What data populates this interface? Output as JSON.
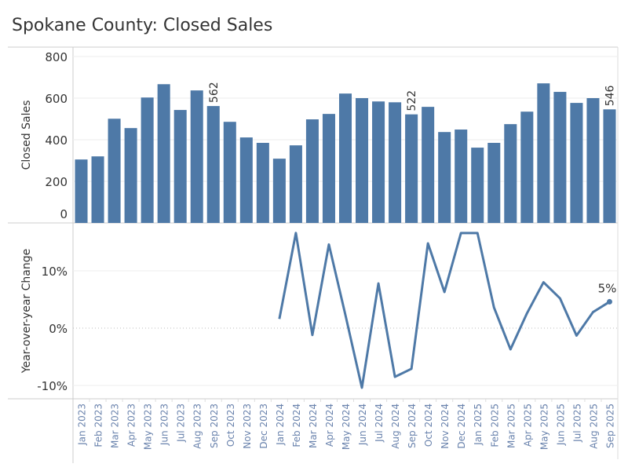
{
  "title": "Spokane County: Closed Sales",
  "chart_data": [
    {
      "type": "bar",
      "ylabel": "Closed Sales",
      "ylim": [
        0,
        800
      ],
      "yticks": [
        0,
        200,
        400,
        600,
        800
      ],
      "grid": true,
      "color": "#4e79a7",
      "categories": [
        "Jan 2023",
        "Feb 2023",
        "Mar 2023",
        "Apr 2023",
        "May 2023",
        "Jun 2023",
        "Jul 2023",
        "Aug 2023",
        "Sep 2023",
        "Oct 2023",
        "Nov 2023",
        "Dec 2023",
        "Jan 2024",
        "Feb 2024",
        "Mar 2024",
        "Apr 2024",
        "May 2024",
        "Jun 2024",
        "Jul 2024",
        "Aug 2024",
        "Sep 2024",
        "Oct 2024",
        "Nov 2024",
        "Dec 2024",
        "Jan 2025",
        "Feb 2025",
        "Mar 2025",
        "Apr 2025",
        "May 2025",
        "Jun 2025",
        "Jul 2025",
        "Aug 2025",
        "Sep 2025"
      ],
      "values": [
        305,
        320,
        501,
        456,
        603,
        667,
        543,
        637,
        562,
        486,
        411,
        385,
        309,
        373,
        498,
        524,
        622,
        600,
        584,
        580,
        522,
        558,
        437,
        449,
        362,
        385,
        475,
        535,
        671,
        630,
        577,
        600,
        546
      ],
      "data_labels": {
        "Sep 2023": "562",
        "Sep 2024": "522",
        "Sep 2025": "546"
      }
    },
    {
      "type": "line",
      "ylabel": "Year-over-year Change",
      "ylim": [
        -12.5,
        18.3
      ],
      "yticks": [
        -10,
        0,
        10
      ],
      "ytick_labels": [
        "-10%",
        "0%",
        "10%"
      ],
      "zero_line": "dotted",
      "color": "#4e79a7",
      "categories": [
        "Jan 2024",
        "Feb 2024",
        "Mar 2024",
        "Apr 2024",
        "May 2024",
        "Jun 2024",
        "Jul 2024",
        "Aug 2024",
        "Sep 2024",
        "Oct 2024",
        "Nov 2024",
        "Dec 2024",
        "Jan 2025",
        "Feb 2025",
        "Mar 2025",
        "Apr 2025",
        "May 2025",
        "Jun 2025",
        "Jul 2025",
        "Aug 2025",
        "Sep 2025"
      ],
      "values": [
        1.6,
        16.6,
        -1.2,
        14.6,
        2.3,
        -10.4,
        7.8,
        -8.5,
        -7.1,
        14.8,
        6.3,
        16.6,
        16.6,
        3.6,
        -3.7,
        2.6,
        8.0,
        5.2,
        -1.3,
        2.8,
        4.6
      ],
      "data_labels": {
        "Sep 2025": "5%"
      }
    }
  ]
}
